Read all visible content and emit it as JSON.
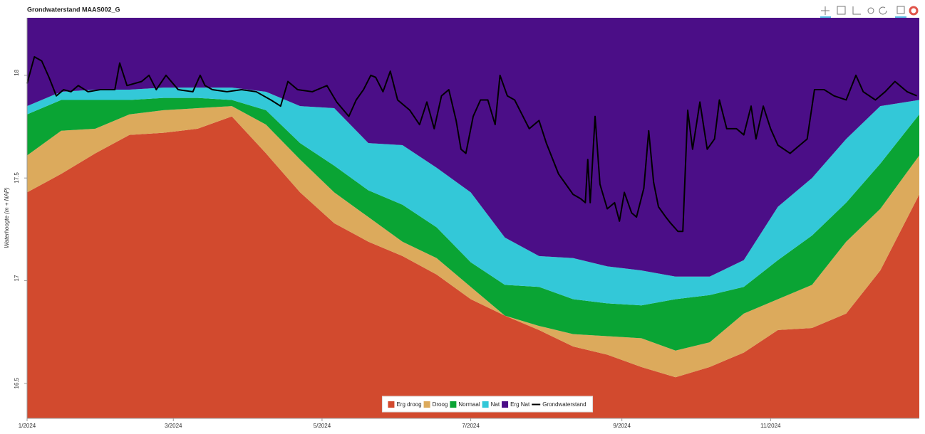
{
  "chart_data": {
    "type": "area",
    "title": "Grondwaterstand MAAS002_G",
    "y_label": "Waterhoogte (m + NAP)",
    "xlim": [
      0,
      366
    ],
    "xticks": [
      {
        "value": 0,
        "label": "1/2024"
      },
      {
        "value": 60,
        "label": "3/2024"
      },
      {
        "value": 121,
        "label": "5/2024"
      },
      {
        "value": 182,
        "label": "7/2024"
      },
      {
        "value": 244,
        "label": "9/2024"
      },
      {
        "value": 305,
        "label": "11/2024"
      }
    ],
    "ylim": [
      16.33,
      18.28
    ],
    "yticks": [
      16.5,
      17,
      17.5,
      18
    ],
    "x": [
      0,
      14,
      28,
      42,
      56,
      70,
      84,
      98,
      112,
      126,
      140,
      154,
      168,
      182,
      196,
      210,
      224,
      238,
      252,
      266,
      280,
      294,
      308,
      322,
      336,
      350,
      366
    ],
    "series": [
      {
        "name": "Erg droog",
        "color": "#d24a2e",
        "values": [
          17.43,
          17.52,
          17.62,
          17.71,
          17.72,
          17.74,
          17.8,
          17.62,
          17.43,
          17.28,
          17.19,
          17.12,
          17.03,
          16.91,
          16.83,
          16.76,
          16.68,
          16.64,
          16.58,
          16.53,
          16.58,
          16.65,
          16.76,
          16.77,
          16.84,
          17.05,
          17.42
        ]
      },
      {
        "name": "Droog",
        "color": "#dcaa5c",
        "values": [
          17.61,
          17.73,
          17.74,
          17.81,
          17.83,
          17.84,
          17.85,
          17.76,
          17.59,
          17.43,
          17.31,
          17.19,
          17.11,
          16.97,
          16.83,
          16.78,
          16.74,
          16.73,
          16.72,
          16.66,
          16.7,
          16.84,
          16.91,
          16.98,
          17.19,
          17.35,
          17.61
        ]
      },
      {
        "name": "Normaal",
        "color": "#0aa434",
        "values": [
          17.81,
          17.88,
          17.88,
          17.88,
          17.89,
          17.89,
          17.88,
          17.83,
          17.67,
          17.56,
          17.44,
          17.37,
          17.26,
          17.09,
          16.98,
          16.97,
          16.91,
          16.89,
          16.88,
          16.91,
          16.93,
          16.97,
          17.1,
          17.22,
          17.38,
          17.57,
          17.81
        ]
      },
      {
        "name": "Nat",
        "color": "#33c8d8",
        "values": [
          17.85,
          17.92,
          17.93,
          17.93,
          17.94,
          17.94,
          17.94,
          17.92,
          17.85,
          17.84,
          17.67,
          17.66,
          17.55,
          17.43,
          17.21,
          17.12,
          17.11,
          17.07,
          17.05,
          17.02,
          17.02,
          17.1,
          17.36,
          17.5,
          17.69,
          17.85,
          17.88
        ]
      },
      {
        "name": "Erg Nat",
        "color": "#4b0e87"
      }
    ],
    "line": {
      "name": "Grondwaterstand",
      "color": "#000000",
      "x": [
        0,
        3,
        6,
        9,
        12,
        15,
        18,
        21,
        25,
        30,
        36,
        38,
        41,
        47,
        50,
        53,
        57,
        62,
        68,
        71,
        73,
        76,
        82,
        88,
        94,
        100,
        104,
        107,
        111,
        117,
        123,
        127,
        132,
        135,
        138,
        141,
        143,
        146,
        149,
        152,
        157,
        161,
        164,
        167,
        170,
        173,
        176,
        178,
        180,
        183,
        186,
        189,
        192,
        194,
        197,
        200,
        203,
        206,
        210,
        213,
        218,
        221,
        224,
        227,
        229,
        230,
        231,
        233,
        235,
        238,
        241,
        243,
        245,
        248,
        250,
        253,
        255,
        257,
        259,
        262,
        264,
        267,
        269,
        271,
        273,
        276,
        279,
        282,
        284,
        287,
        291,
        294,
        297,
        299,
        302,
        305,
        308,
        313,
        317,
        320,
        323,
        327,
        331,
        336,
        340,
        343,
        348,
        352,
        356,
        361,
        365
      ],
      "values": [
        17.96,
        18.09,
        18.07,
        17.99,
        17.9,
        17.93,
        17.92,
        17.95,
        17.92,
        17.93,
        17.93,
        18.06,
        17.95,
        17.97,
        18.0,
        17.93,
        18.0,
        17.93,
        17.92,
        18.0,
        17.95,
        17.93,
        17.92,
        17.93,
        17.92,
        17.88,
        17.85,
        17.97,
        17.93,
        17.92,
        17.95,
        17.87,
        17.8,
        17.88,
        17.93,
        18.0,
        17.99,
        17.92,
        18.02,
        17.88,
        17.83,
        17.76,
        17.87,
        17.74,
        17.9,
        17.93,
        17.78,
        17.64,
        17.62,
        17.8,
        17.88,
        17.88,
        17.76,
        18.0,
        17.9,
        17.88,
        17.81,
        17.74,
        17.78,
        17.67,
        17.52,
        17.47,
        17.42,
        17.4,
        17.38,
        17.59,
        17.38,
        17.8,
        17.47,
        17.35,
        17.38,
        17.29,
        17.43,
        17.33,
        17.31,
        17.45,
        17.73,
        17.48,
        17.36,
        17.31,
        17.28,
        17.24,
        17.24,
        17.83,
        17.64,
        17.87,
        17.64,
        17.69,
        17.88,
        17.74,
        17.74,
        17.71,
        17.85,
        17.69,
        17.85,
        17.74,
        17.66,
        17.62,
        17.66,
        17.69,
        17.93,
        17.93,
        17.9,
        17.88,
        18.0,
        17.92,
        17.88,
        17.92,
        17.97,
        17.92,
        17.9
      ]
    }
  }
}
